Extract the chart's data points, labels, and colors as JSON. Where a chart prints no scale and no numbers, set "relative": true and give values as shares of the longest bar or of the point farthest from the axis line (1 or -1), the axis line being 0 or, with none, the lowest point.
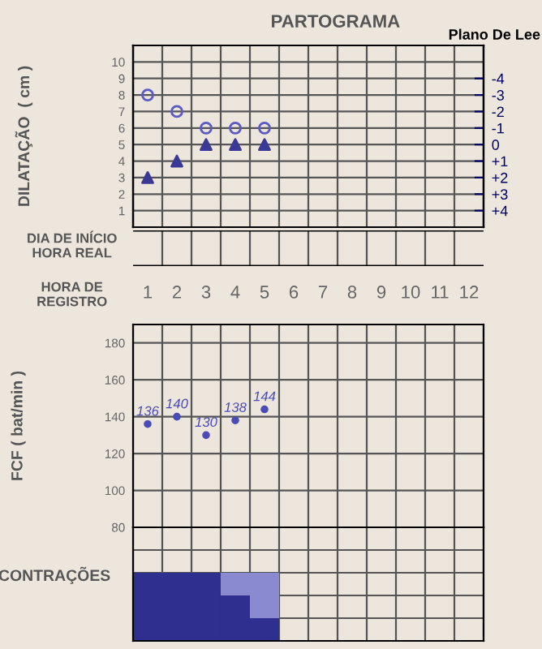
{
  "chart_data": [
    {
      "type": "scatter",
      "title": "PARTOGRAMA",
      "ylabel": "DILATAÇÃO  ( cm )",
      "y2label": "Plano De Lee",
      "categories": [
        "1",
        "2",
        "3",
        "4",
        "5",
        "6",
        "7",
        "8",
        "9",
        "10",
        "11",
        "12"
      ],
      "ylim": [
        0,
        11
      ],
      "yticks": [
        1,
        2,
        3,
        4,
        5,
        6,
        7,
        8,
        9,
        10
      ],
      "y2lim": [
        5,
        -6
      ],
      "y2ticks": [
        -4,
        -3,
        -2,
        -1,
        0,
        {
          "value": 1,
          "label": "+1"
        },
        {
          "value": 2,
          "label": "+2"
        },
        {
          "value": 3,
          "label": "+3"
        },
        {
          "value": 4,
          "label": "+4"
        }
      ],
      "grid": true,
      "tick_labels": "y",
      "series": [
        {
          "color": "#3a3a96",
          "marker": "triangle",
          "values": [
            3,
            4,
            5,
            5,
            5,
            null,
            null,
            null,
            null,
            null,
            null,
            null
          ]
        },
        {
          "color": "#5a5ac8",
          "marker": "circle",
          "axis": "y2",
          "values": [
            -3,
            -2,
            -1,
            -1,
            -1,
            null,
            null,
            null,
            null,
            null,
            null,
            null
          ]
        }
      ]
    },
    {
      "type": "scatter",
      "ylabel": "FCF ( bat/min )",
      "annotations": [
        "DIA DE INÍCIO\nHORA REAL",
        "HORA DE\nREGISTRO"
      ],
      "categories": [
        "1",
        "2",
        "3",
        "4",
        "5",
        "6",
        "7",
        "8",
        "9",
        "10",
        "11",
        "12"
      ],
      "ylim": [
        80,
        190
      ],
      "yticks": [
        80,
        100,
        120,
        140,
        160,
        180
      ],
      "grid": true,
      "marker": "circle",
      "data_labels": true,
      "series": [
        {
          "color": "#4a4ab8",
          "values": [
            136,
            140,
            130,
            138,
            144,
            null,
            null,
            null,
            null,
            null,
            null,
            null
          ]
        }
      ]
    },
    {
      "type": "bar",
      "stacked": true,
      "relative": true,
      "ylabel": "CONTRAÇÕES",
      "tick_labels": false,
      "grid": "x",
      "categories": [
        null,
        null,
        null,
        null,
        null,
        null,
        null,
        null,
        null,
        null,
        null,
        null
      ],
      "series": [
        {
          "color": "#2e2f8f",
          "values": [
            1,
            1,
            1,
            0.667,
            0.333,
            null,
            null,
            null,
            null,
            null,
            null,
            null
          ]
        },
        {
          "color": "#8a8ad0",
          "values": [
            0,
            0,
            0,
            0.333,
            0.667,
            null,
            null,
            null,
            null,
            null,
            null,
            null
          ]
        }
      ]
    }
  ]
}
